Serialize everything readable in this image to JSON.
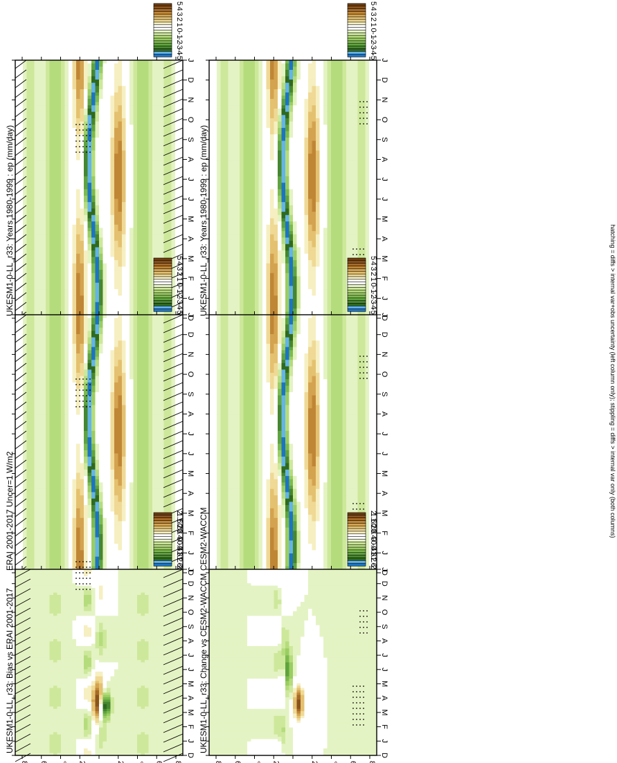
{
  "footer": "hatching = diffs > internal var+obs uncertainty (left column only); stippling = diffs > internal var only (both columns)",
  "months": [
    "D",
    "J",
    "F",
    "M",
    "A",
    "M",
    "J",
    "J",
    "A",
    "S",
    "O",
    "N",
    "D",
    "J"
  ],
  "lat_ticks": [
    "80",
    "60",
    "°N",
    "20",
    "0",
    "20",
    "°S",
    "60",
    "80"
  ],
  "colors": {
    "abs": [
      "#1c74c4",
      "#63b4e8",
      "#2f6a1e",
      "#46862e",
      "#5fa33e",
      "#7cba4e",
      "#9acd62",
      "#b5dc7c",
      "#cde89b",
      "#e4f3c3",
      "#ffffff",
      "#ffffff",
      "#f6efc1",
      "#efd995",
      "#e4c170",
      "#d4a350",
      "#bf8636",
      "#a66a28",
      "#8b531c",
      "#6f3f12"
    ],
    "diff": [
      "#1c74c4",
      "#63b4e8",
      "#2f6a1e",
      "#46862e",
      "#5fa33e",
      "#7cba4e",
      "#9acd62",
      "#b5dc7c",
      "#cde89b",
      "#e4f3c3",
      "#ffffff",
      "#ffffff",
      "#f6efc1",
      "#efd995",
      "#e4c170",
      "#d4a350",
      "#bf8636",
      "#a66a28",
      "#8b531c",
      "#6f3f12"
    ],
    "abs_cbar_labels": [
      "5",
      "4",
      "3",
      "2",
      "1",
      "0",
      "-1",
      "-2",
      "-3",
      "-4",
      "-5"
    ],
    "diff_cbar_labels": [
      "2",
      "1.6",
      "1.2",
      "0.8",
      "0.4",
      "0",
      "-0.4",
      "-0.8",
      "-1.2",
      "-1.6",
      "-2"
    ]
  },
  "chart_data": [
    {
      "type": "heatmap",
      "title": "UKESM1-0-LL_r33: Years 1980-1999 : ep (mm/day)",
      "x": [
        "D",
        "J",
        "F",
        "M",
        "A",
        "M",
        "J",
        "J",
        "A",
        "S",
        "O",
        "N",
        "D",
        "J"
      ],
      "y": [
        "80",
        "60",
        "°N",
        "20",
        "0",
        "20",
        "°S",
        "60",
        "80"
      ],
      "colorbar": [
        "5",
        "4",
        "3",
        "2",
        "1",
        "0",
        "-1",
        "-2",
        "-3",
        "-4",
        "-5"
      ],
      "hatching": true,
      "stippling": true
    },
    {
      "type": "heatmap",
      "title": "UKESM1-0-LL_r33: Years 1980-1999 : ep (mm/day)",
      "x": [
        "D",
        "J",
        "F",
        "M",
        "A",
        "M",
        "J",
        "J",
        "A",
        "S",
        "O",
        "N",
        "D",
        "J"
      ],
      "y": [
        "80",
        "60",
        "°N",
        "20",
        "0",
        "20",
        "°S",
        "60",
        "80"
      ],
      "colorbar": [
        "5",
        "4",
        "3",
        "2",
        "1",
        "0",
        "-1",
        "-2",
        "-3",
        "-4",
        "-5"
      ],
      "hatching": false,
      "stippling": true
    },
    {
      "type": "heatmap",
      "title": "ERAI 2001-2017 Uncer=1 W/m2",
      "x": [
        "D",
        "J",
        "F",
        "M",
        "A",
        "M",
        "J",
        "J",
        "A",
        "S",
        "O",
        "N",
        "D",
        "J"
      ],
      "y": [
        "80",
        "60",
        "°N",
        "20",
        "0",
        "20",
        "°S",
        "60",
        "80"
      ],
      "colorbar": [
        "5",
        "4",
        "3",
        "2",
        "1",
        "0",
        "-1",
        "-2",
        "-3",
        "-4",
        "-5"
      ],
      "hatching": true,
      "stippling": true
    },
    {
      "type": "heatmap",
      "title": "CESM2-WACCM",
      "x": [
        "D",
        "J",
        "F",
        "M",
        "A",
        "M",
        "J",
        "J",
        "A",
        "S",
        "O",
        "N",
        "D",
        "J"
      ],
      "y": [
        "80",
        "60",
        "°N",
        "20",
        "0",
        "20",
        "°S",
        "60",
        "80"
      ],
      "colorbar": [
        "5",
        "4",
        "3",
        "2",
        "1",
        "0",
        "-1",
        "-2",
        "-3",
        "-4",
        "-5"
      ],
      "hatching": false,
      "stippling": true
    },
    {
      "type": "heatmap",
      "title": "UKESM1-0-LL_r33: Bias vs ERAI 2001-2017",
      "x": [
        "D",
        "J",
        "F",
        "M",
        "A",
        "M",
        "J",
        "J",
        "A",
        "S",
        "O",
        "N",
        "D",
        "J"
      ],
      "y": [
        "80",
        "60",
        "°N",
        "20",
        "0",
        "20",
        "°S",
        "60",
        "80"
      ],
      "colorbar": [
        "2",
        "1.6",
        "1.2",
        "0.8",
        "0.4",
        "0",
        "-0.4",
        "-0.8",
        "-1.2",
        "-1.6",
        "-2"
      ],
      "hatching": true,
      "stippling": true
    },
    {
      "type": "heatmap",
      "title": "UKESM1-0-LL_r33: Change vs CESM2-WACCM",
      "x": [
        "D",
        "J",
        "F",
        "M",
        "A",
        "M",
        "J",
        "J",
        "A",
        "S",
        "O",
        "N",
        "D",
        "J"
      ],
      "y": [
        "80",
        "60",
        "°N",
        "20",
        "0",
        "20",
        "°S",
        "60",
        "80"
      ],
      "colorbar": [
        "2",
        "1.6",
        "1.2",
        "0.8",
        "0.4",
        "0",
        "-0.4",
        "-0.8",
        "-1.2",
        "-1.6",
        "-2"
      ],
      "hatching": false,
      "stippling": true
    }
  ]
}
